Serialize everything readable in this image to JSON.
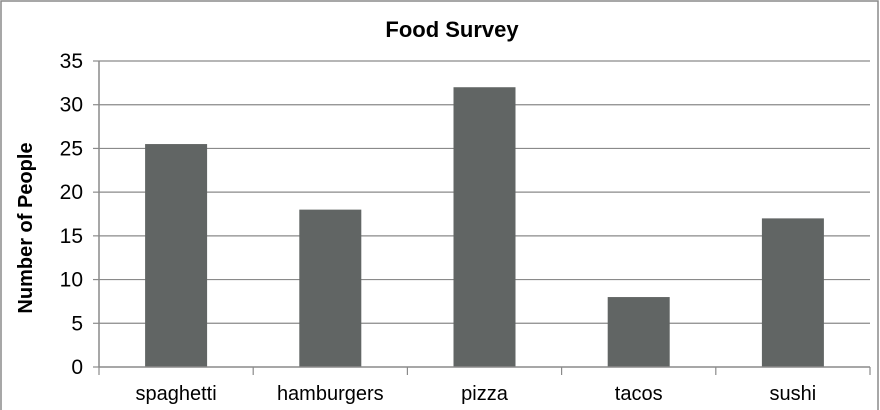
{
  "chart_data": {
    "type": "bar",
    "title": "Food Survey",
    "xlabel": "",
    "ylabel": "Number of People",
    "categories": [
      "spaghetti",
      "hamburgers",
      "pizza",
      "tacos",
      "sushi"
    ],
    "values": [
      25.5,
      18,
      32,
      8,
      17
    ],
    "ylim": [
      0,
      35
    ],
    "yticks": [
      0,
      5,
      10,
      15,
      20,
      25,
      30,
      35
    ],
    "grid": true,
    "legend": "none",
    "colors": {
      "bar": "#616564",
      "grid": "#8a8a8a",
      "axis": "#8a8a8a",
      "border": "#8a8a8a"
    }
  }
}
